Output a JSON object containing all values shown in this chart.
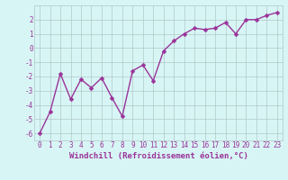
{
  "x": [
    0,
    1,
    2,
    3,
    4,
    5,
    6,
    7,
    8,
    9,
    10,
    11,
    12,
    13,
    14,
    15,
    16,
    17,
    18,
    19,
    20,
    21,
    22,
    23
  ],
  "y": [
    -6.0,
    -4.5,
    -1.8,
    -3.6,
    -2.2,
    -2.8,
    -2.1,
    -3.5,
    -4.8,
    -1.6,
    -1.2,
    -2.3,
    -0.2,
    0.5,
    1.0,
    1.4,
    1.3,
    1.4,
    1.8,
    1.0,
    2.0,
    2.0,
    2.3,
    2.5
  ],
  "line_color": "#993399",
  "marker_color": "#993399",
  "bg_color": "#d8f5f5",
  "grid_color": "#b0c8c8",
  "xlabel": "Windchill (Refroidissement éolien,°C)",
  "xlim": [
    -0.5,
    23.5
  ],
  "ylim": [
    -6.5,
    3.0
  ],
  "yticks": [
    -6,
    -5,
    -4,
    -3,
    -2,
    -1,
    0,
    1,
    2
  ],
  "xticks": [
    0,
    1,
    2,
    3,
    4,
    5,
    6,
    7,
    8,
    9,
    10,
    11,
    12,
    13,
    14,
    15,
    16,
    17,
    18,
    19,
    20,
    21,
    22,
    23
  ],
  "tick_label_fontsize": 5.5,
  "xlabel_fontsize": 6.5,
  "line_width": 1.0,
  "marker_size": 2.5
}
